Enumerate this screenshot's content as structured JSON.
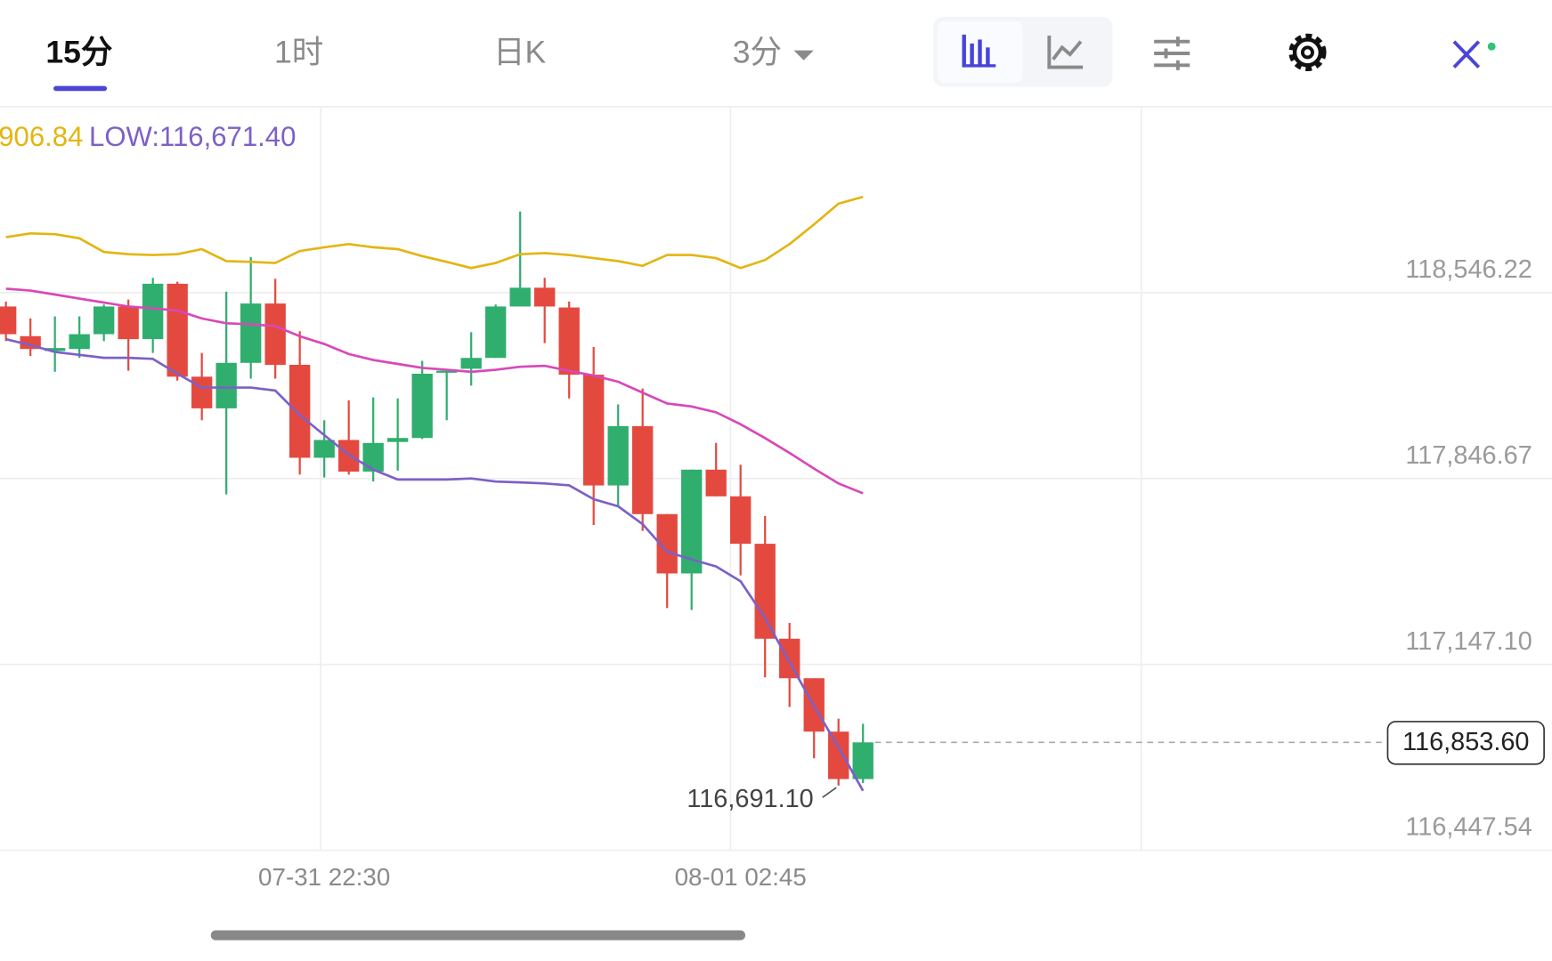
{
  "toolbar": {
    "tabs": [
      "15分",
      "1时",
      "日K",
      "3分"
    ],
    "active": 0
  },
  "chart_data": {
    "type": "candlestick",
    "categories": [
      null,
      null,
      null,
      null,
      null,
      null,
      null,
      null,
      null,
      null,
      null,
      null,
      null,
      "07-31 22:30",
      null,
      null,
      null,
      null,
      null,
      null,
      null,
      null,
      null,
      null,
      null,
      null,
      null,
      null,
      null,
      null,
      "08-01 02:45",
      null,
      null,
      null,
      null,
      null
    ],
    "open": [
      118494.1,
      118382.5,
      118326.7,
      118334.1,
      118389.9,
      118494.1,
      118371.3,
      118579.7,
      118229.9,
      118110.8,
      118282.0,
      118505.3,
      118274.6,
      117924.8,
      117991.8,
      117872.7,
      117984.3,
      117999.2,
      118244.8,
      118259.7,
      118300.6,
      118494.1,
      118564.8,
      118490.4,
      118237.4,
      117820.6,
      118043.9,
      117712.7,
      117489.4,
      117880.1,
      117779.7,
      117601.1,
      117243.8,
      117095.0,
      116894.1,
      116715.5
    ],
    "high": [
      118512.7,
      118449.5,
      118456.9,
      118456.9,
      118501.5,
      118520.2,
      118602.0,
      118587.1,
      118319.2,
      118549.9,
      118680.2,
      118598.3,
      118401.1,
      118066.2,
      118140.6,
      118151.8,
      118148.1,
      118289.5,
      118259.7,
      118397.4,
      118501.5,
      118851.3,
      118602.0,
      118512.7,
      118341.5,
      118125.7,
      118185.3,
      117712.7,
      117880.1,
      117980.6,
      117898.7,
      117705.2,
      117303.4,
      117095.0,
      116942.5,
      116923.8
    ],
    "low": [
      118363.9,
      118308.1,
      118248.5,
      118300.6,
      118363.9,
      118252.2,
      118319.2,
      118215.0,
      118066.2,
      117787.1,
      118222.5,
      118222.5,
      117861.5,
      117850.4,
      117861.5,
      117835.5,
      117876.4,
      117995.5,
      118066.2,
      118196.4,
      118300.6,
      118494.1,
      118356.4,
      118148.1,
      117671.8,
      117738.7,
      117649.4,
      117359.2,
      117351.8,
      117779.7,
      117482.0,
      117098.7,
      116987.1,
      116793.6,
      116691.1,
      116700.6
    ],
    "close": [
      118389.9,
      118334.1,
      118337.8,
      118389.9,
      118494.1,
      118371.3,
      118579.7,
      118229.9,
      118110.8,
      118282.0,
      118505.3,
      118274.6,
      117924.8,
      117991.8,
      117872.7,
      117980.6,
      117999.2,
      118241.1,
      118252.2,
      118300.6,
      118494.1,
      118564.8,
      118494.1,
      118237.4,
      117820.6,
      118043.9,
      117712.7,
      117489.4,
      117880.1,
      117779.7,
      117601.1,
      117243.8,
      117095.0,
      116894.1,
      116715.5,
      116853.6
    ],
    "up_color": "#2fae6e",
    "down_color": "#e4493f",
    "overlays": [
      {
        "color": "#e3b512",
        "values": [
          118755,
          118769,
          118766,
          118751,
          118699,
          118691,
          118688,
          118691,
          118710,
          118665,
          118662,
          118658,
          118703,
          118717,
          118729,
          118717,
          118710,
          118684,
          118662,
          118639,
          118658,
          118691,
          118695,
          118688,
          118676,
          118665,
          118647,
          118688,
          118688,
          118676,
          118639,
          118669,
          118729,
          118803,
          118881,
          118906.84
        ]
      },
      {
        "color": "#d848b8",
        "values": [
          118561,
          118554,
          118539,
          118524,
          118509,
          118494,
          118487,
          118479,
          118449,
          118431,
          118427,
          118420,
          118382,
          118353,
          118315,
          118293,
          118278,
          118263,
          118256,
          118248,
          118256,
          118267,
          118271,
          118252,
          118234,
          118211,
          118170,
          118129,
          118118,
          118096,
          118051,
          117999,
          117943,
          117884,
          117828,
          117791
        ]
      },
      {
        "color": "#7d60c6",
        "values": [
          118371,
          118349,
          118323,
          118312,
          118301,
          118301,
          118297,
          118241,
          118189,
          118189,
          118189,
          118178,
          118085,
          118010,
          117936,
          117880,
          117843,
          117843,
          117843,
          117847,
          117835,
          117832,
          117828,
          117821,
          117769,
          117742,
          117675,
          117571,
          117542,
          117516,
          117460,
          117322,
          117155,
          116991,
          116835,
          116671.4
        ]
      }
    ],
    "indicator_labels": [
      {
        "text": "906.84",
        "color": "#e3b512"
      },
      {
        "text": "LOW:116,671.40",
        "color": "#7d60c6"
      }
    ],
    "ylim": [
      116447.54,
      119245.79
    ],
    "yticks": [
      {
        "value": 116447.54,
        "label": "116,447.54"
      },
      {
        "value": 117147.1,
        "label": "117,147.10"
      },
      {
        "value": 117846.67,
        "label": "117,846.67"
      },
      {
        "value": 118546.22,
        "label": "118,546.22"
      }
    ],
    "grid": true,
    "last_price": {
      "value": 116853.6,
      "label": "116,853.60"
    },
    "low_marker": {
      "value": 116691.1,
      "label": "116,691.10"
    }
  }
}
